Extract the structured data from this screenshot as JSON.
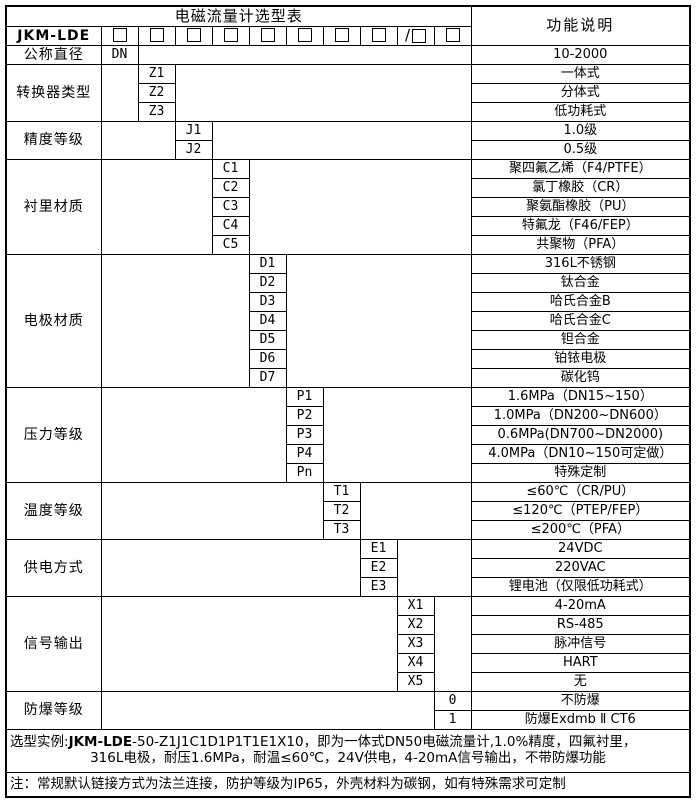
{
  "table": {
    "title": "电磁流量计选型表",
    "function_header": "功能说明",
    "model_prefix": "JKM-LDE",
    "checkboxes": {
      "count": 10,
      "slash_before_index": 8,
      "slash_char": "/",
      "symbol": "□"
    },
    "sections": [
      {
        "label": "公称直径",
        "col": 0,
        "rows": [
          {
            "code": "DN",
            "desc": "10-2000"
          }
        ]
      },
      {
        "label": "转换器类型",
        "col": 1,
        "rows": [
          {
            "code": "Z1",
            "desc": "一体式"
          },
          {
            "code": "Z2",
            "desc": "分体式"
          },
          {
            "code": "Z3",
            "desc": "低功耗式"
          }
        ]
      },
      {
        "label": "精度等级",
        "col": 2,
        "rows": [
          {
            "code": "J1",
            "desc": "1.0级"
          },
          {
            "code": "J2",
            "desc": "0.5级"
          }
        ]
      },
      {
        "label": "衬里材质",
        "col": 3,
        "rows": [
          {
            "code": "C1",
            "desc": "聚四氟乙烯（F4/PTFE）"
          },
          {
            "code": "C2",
            "desc": "氯丁橡胶（CR）"
          },
          {
            "code": "C3",
            "desc": "聚氨酯橡胶（PU）"
          },
          {
            "code": "C4",
            "desc": "特氟龙（F46/FEP）"
          },
          {
            "code": "C5",
            "desc": "共聚物（PFA）"
          }
        ]
      },
      {
        "label": "电极材质",
        "col": 4,
        "rows": [
          {
            "code": "D1",
            "desc": "316L不锈钢"
          },
          {
            "code": "D2",
            "desc": "钛合金"
          },
          {
            "code": "D3",
            "desc": "哈氏合金B"
          },
          {
            "code": "D4",
            "desc": "哈氏合金C"
          },
          {
            "code": "D5",
            "desc": "钽合金"
          },
          {
            "code": "D6",
            "desc": "铂铱电极"
          },
          {
            "code": "D7",
            "desc": "碳化钨"
          }
        ]
      },
      {
        "label": "压力等级",
        "col": 5,
        "rows": [
          {
            "code": "P1",
            "desc": "1.6MPa（DN15~150）"
          },
          {
            "code": "P2",
            "desc": "1.0MPa（DN200~DN600）"
          },
          {
            "code": "P3",
            "desc": "0.6MPa(DN700~DN2000)"
          },
          {
            "code": "P4",
            "desc": "4.0MPa（DN10~150可定做）"
          },
          {
            "code": "Pn",
            "desc": "特殊定制"
          }
        ]
      },
      {
        "label": "温度等级",
        "col": 6,
        "rows": [
          {
            "code": "T1",
            "desc": "≤60℃（CR/PU）"
          },
          {
            "code": "T2",
            "desc": "≤120℃（PTEP/FEP）"
          },
          {
            "code": "T3",
            "desc": "≤200℃（PFA）"
          }
        ]
      },
      {
        "label": "供电方式",
        "col": 7,
        "rows": [
          {
            "code": "E1",
            "desc": "24VDC"
          },
          {
            "code": "E2",
            "desc": "220VAC"
          },
          {
            "code": "E3",
            "desc": "锂电池（仅限低功耗式）"
          }
        ]
      },
      {
        "label": "信号输出",
        "col": 8,
        "rows": [
          {
            "code": "X1",
            "desc": "4-20mA"
          },
          {
            "code": "X2",
            "desc": "RS-485"
          },
          {
            "code": "X3",
            "desc": "脉冲信号"
          },
          {
            "code": "X4",
            "desc": "HART"
          },
          {
            "code": "X5",
            "desc": "无"
          }
        ]
      },
      {
        "label": "防爆等级",
        "col": 9,
        "rows": [
          {
            "code": "0",
            "desc": "不防爆"
          },
          {
            "code": "1",
            "desc": "防爆Exdmb Ⅱ CT6"
          }
        ]
      }
    ]
  },
  "footer": {
    "example_prefix": "选型实例:",
    "example_model": "JKM-LDE",
    "example_rest": "-50-Z1J1C1D1P1T1E1X10，即为一体式DN50电磁流量计,1.0%精度，四氟衬里，",
    "example_line2": "316L电极，耐压1.6MPa，耐温≤60℃，24V供电，4-20mA信号输出，不带防爆功能",
    "note": "注：常规默认链接方式为法兰连接，防护等级为IP65，外壳材料为碳钢，如有特殊需求可定制"
  },
  "colors": {
    "border": "#000000",
    "background": "#ffffff",
    "text": "#000000"
  }
}
